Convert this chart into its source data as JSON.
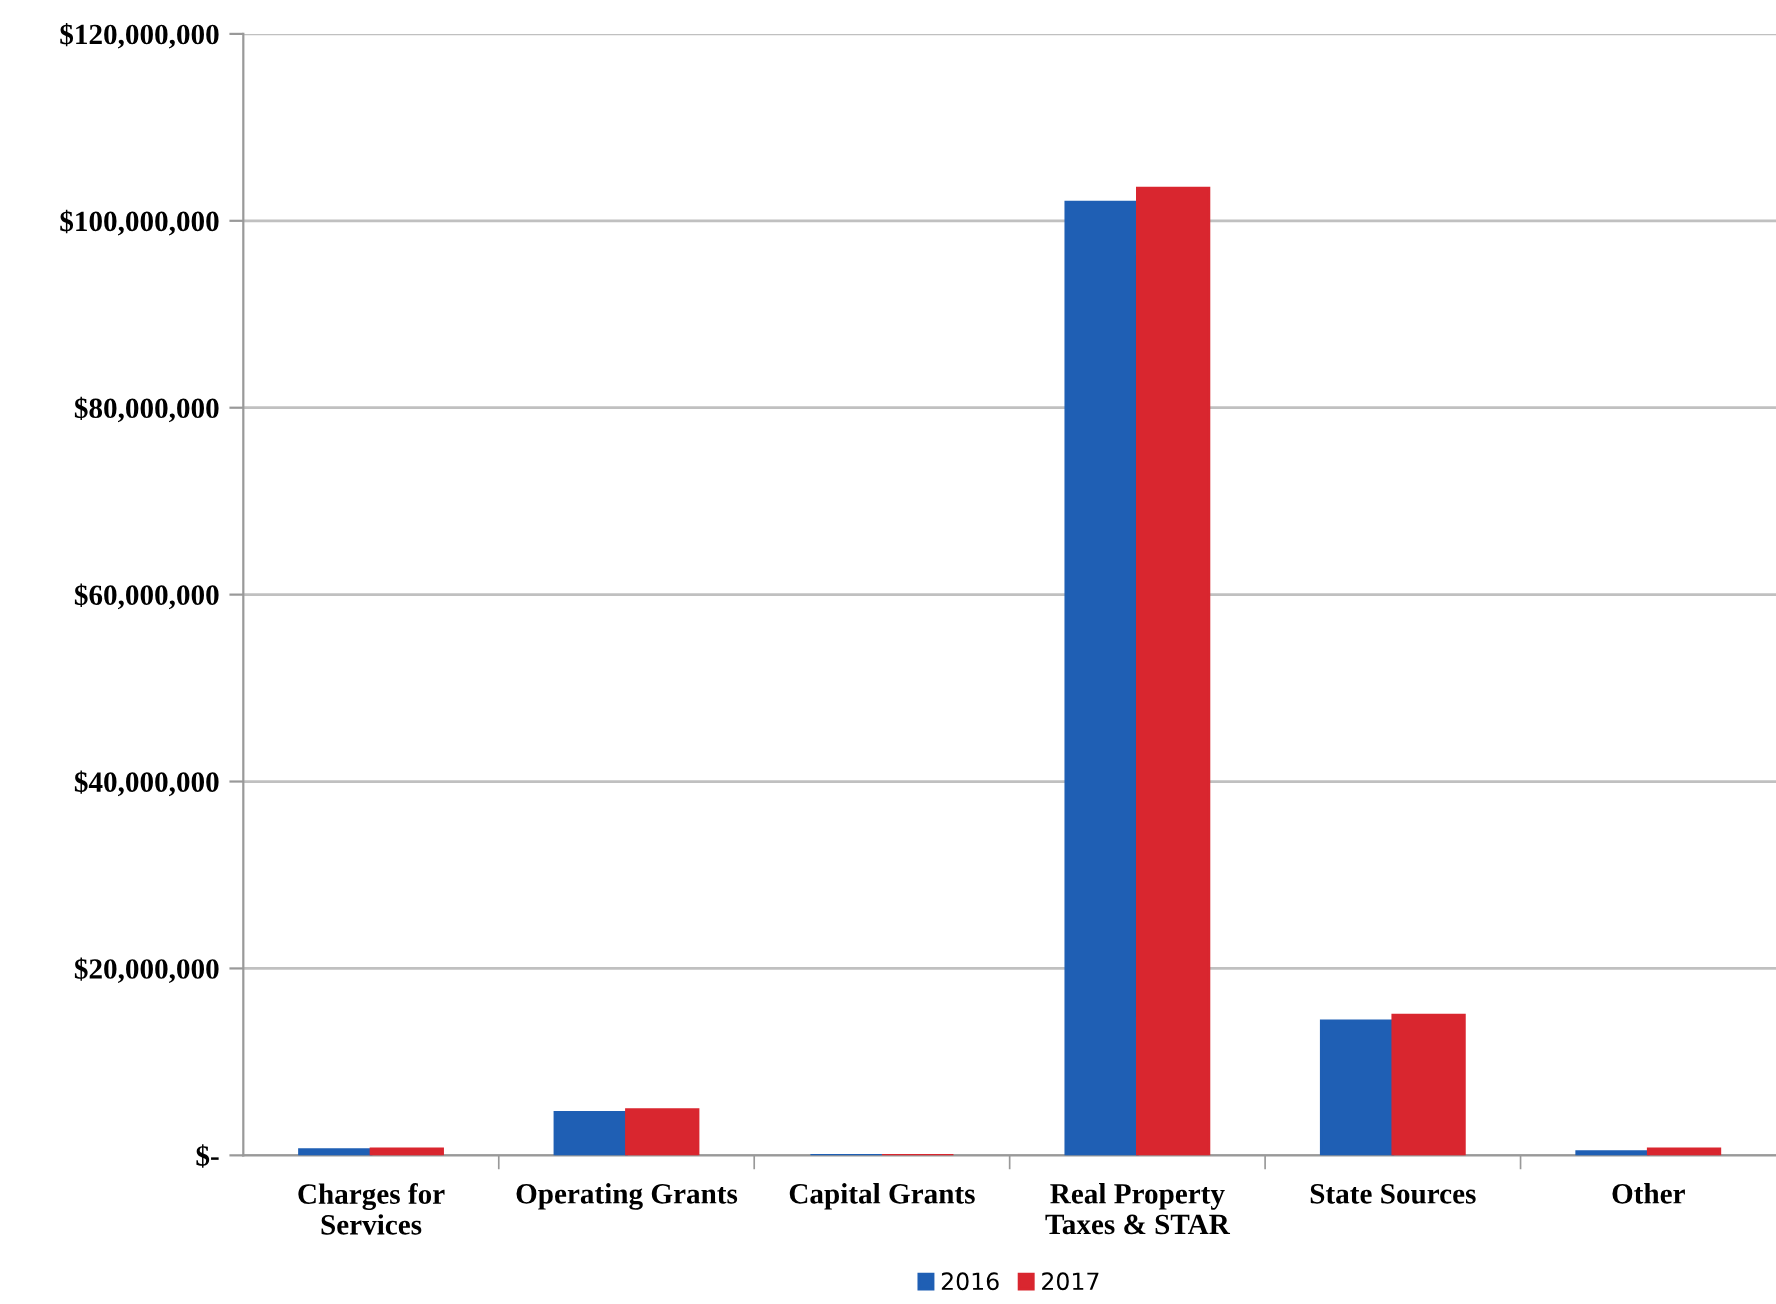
{
  "chart_data": {
    "type": "bar",
    "categories": [
      "Charges for\nServices",
      "Operating Grants",
      "Capital Grants",
      "Real Property\nTaxes & STAR",
      "State Sources",
      "Other"
    ],
    "series": [
      {
        "name": "2016",
        "color": "#1f5fb4",
        "values": [
          600000,
          4600000,
          0,
          102000000,
          14400000,
          400000
        ]
      },
      {
        "name": "2017",
        "color": "#d9262f",
        "values": [
          700000,
          4900000,
          0,
          103500000,
          15000000,
          700000
        ]
      }
    ],
    "ylim": [
      0,
      120000000
    ],
    "yticks": [
      {
        "value": 0,
        "label": "$-"
      },
      {
        "value": 20000000,
        "label": "$20,000,000"
      },
      {
        "value": 40000000,
        "label": "$40,000,000"
      },
      {
        "value": 60000000,
        "label": "$60,000,000"
      },
      {
        "value": 80000000,
        "label": "$80,000,000"
      },
      {
        "value": 100000000,
        "label": "$100,000,000"
      },
      {
        "value": 120000000,
        "label": "$120,000,000"
      }
    ],
    "grid": "y",
    "legend": "bottom"
  }
}
